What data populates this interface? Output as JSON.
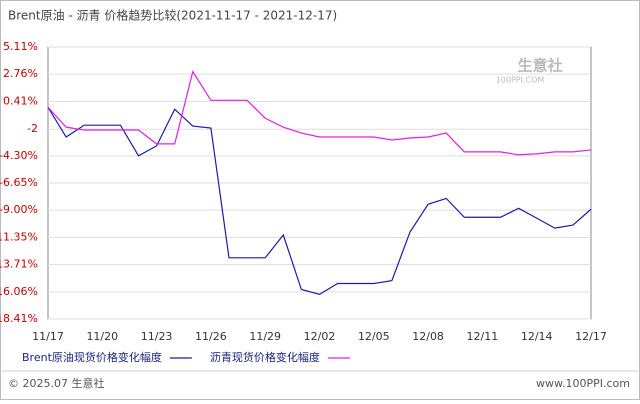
{
  "chart_data": {
    "type": "line",
    "title": "Brent原油 - 沥青 价格趋势比较(2021-11-17 - 2021-12-17)",
    "categories": [
      "11/17",
      null,
      null,
      "11/20",
      null,
      null,
      "11/23",
      null,
      null,
      "11/26",
      null,
      null,
      "11/29",
      null,
      null,
      "12/02",
      null,
      null,
      "12/05",
      null,
      null,
      "12/08",
      null,
      null,
      "12/11",
      null,
      null,
      "12/14",
      null,
      null,
      "12/17"
    ],
    "series": [
      {
        "name": "Brent原油现货价格变化幅度",
        "color": "#1c1ca8",
        "values": [
          -0.1,
          -2.67,
          -1.65,
          -1.65,
          -1.65,
          -4.3,
          -3.44,
          -0.27,
          -1.73,
          -1.9,
          -13.12,
          -13.12,
          -13.12,
          -11.15,
          -15.86,
          -16.28,
          -15.34,
          -15.34,
          -15.34,
          -15.09,
          -10.89,
          -8.49,
          -7.98,
          -9.61,
          -9.61,
          -9.61,
          -8.84,
          -9.69,
          -10.55,
          -10.29,
          -8.92
        ]
      },
      {
        "name": "沥青现货价格变化幅度",
        "color": "#e020e0",
        "values": [
          -0.1,
          -1.82,
          -2.07,
          -2.07,
          -2.07,
          -2.07,
          -3.27,
          -3.27,
          2.98,
          0.5,
          0.5,
          0.5,
          -1.05,
          -1.82,
          -2.33,
          -2.67,
          -2.67,
          -2.67,
          -2.67,
          -2.93,
          -2.76,
          -2.67,
          -2.33,
          -3.96,
          -3.96,
          -3.96,
          -4.21,
          -4.13,
          -3.96,
          -3.96,
          -3.79
        ]
      }
    ],
    "ylim": [
      -18.41,
      5.11
    ],
    "yticks": [
      {
        "value": 5.11,
        "label": "5.11%"
      },
      {
        "value": 2.76,
        "label": "2.76%"
      },
      {
        "value": 0.41,
        "label": "0.41%"
      },
      -2,
      {
        "value": -4.3,
        "label": "-4.30%"
      },
      {
        "value": -6.65,
        "label": "-6.65%"
      },
      {
        "value": -9.0,
        "label": "-9.00%"
      },
      {
        "value": -11.35,
        "label": "-11.35%"
      },
      {
        "value": -13.71,
        "label": "-13.71%"
      },
      {
        "value": -16.06,
        "label": "-16.06%"
      },
      {
        "value": -18.41,
        "label": "-18.41%"
      }
    ],
    "grid": true,
    "footer_left": "© 2025.07 生意社",
    "footer_right": "www.100PPI.com",
    "watermark": "生意社",
    "watermark_sub": "100PPI.COM"
  }
}
